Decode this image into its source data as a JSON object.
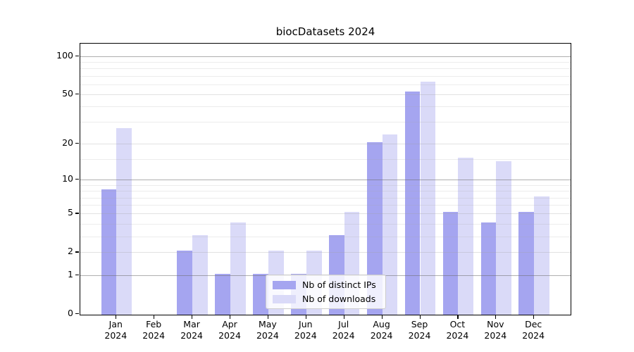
{
  "chart_data": {
    "type": "bar",
    "title": "biocDatasets 2024",
    "categories": [
      "Jan 2024",
      "Feb 2024",
      "Mar 2024",
      "Apr 2024",
      "May 2024",
      "Jun 2024",
      "Jul 2024",
      "Aug 2024",
      "Sep 2024",
      "Oct 2024",
      "Nov 2024",
      "Dec 2024"
    ],
    "series": [
      {
        "name": "Nb of distinct IPs",
        "color": "#a5a5f0",
        "values": [
          8,
          0,
          2,
          1,
          1,
          1,
          3,
          20,
          51,
          5,
          4,
          5
        ]
      },
      {
        "name": "Nb of downloads",
        "color": "#dadaf8",
        "values": [
          26,
          0,
          3,
          4,
          2,
          2,
          5,
          23,
          61,
          15,
          14,
          7
        ]
      }
    ],
    "yscale": "log1p",
    "ylim": [
      0,
      126
    ],
    "yticks": [
      0,
      1,
      2,
      5,
      10,
      20,
      50,
      100
    ],
    "ytick_labels": [
      "0",
      "1",
      "2",
      "5",
      "10",
      "20",
      "50",
      "100"
    ],
    "grid": true,
    "gridlines": {
      "major_values": [
        1,
        10,
        100
      ],
      "mid_values": [
        2,
        5,
        20,
        50
      ],
      "minor_values": [
        3,
        4,
        6,
        7,
        8,
        9,
        15,
        30,
        40,
        60,
        70,
        80,
        90
      ]
    },
    "legend_position": "lower center",
    "colors": {
      "distinct_ips": "#a5a5f0",
      "downloads": "#dadaf8",
      "grid_major": "#6e6e6e",
      "grid_minor": "#aaaaaa",
      "spine": "#000000"
    }
  },
  "legend": {
    "items": [
      {
        "label": "Nb of distinct IPs",
        "color": "#a5a5f0"
      },
      {
        "label": "Nb of downloads",
        "color": "#dadaf8"
      }
    ]
  }
}
